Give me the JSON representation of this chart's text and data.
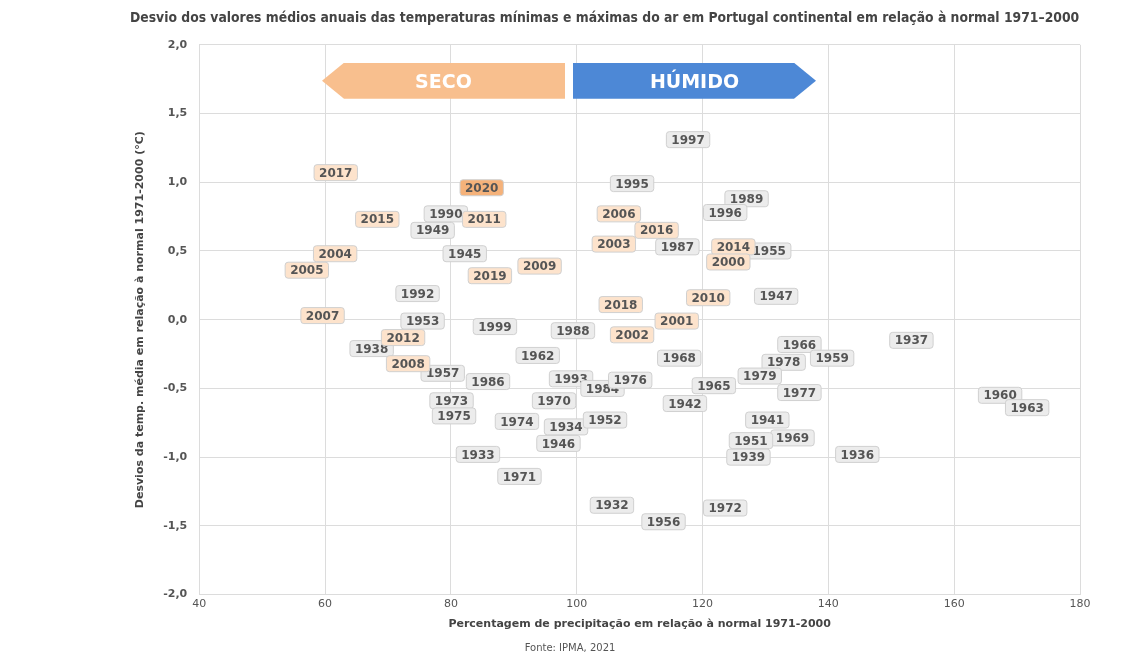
{
  "chart_data": {
    "type": "scatter",
    "title": "Desvio dos valores médios anuais das temperaturas mínimas e máximas do ar em Portugal continental em relação à normal 1971–2000",
    "xlabel": "Percentagem de precipitação em relação à normal 1971-2000",
    "ylabel": "Desvios da temp. média em relação à normal 1971-2000 (°C)",
    "xlim": [
      40,
      180
    ],
    "xticks": [
      40,
      60,
      80,
      100,
      120,
      140,
      160,
      180
    ],
    "ylim": [
      -2,
      2
    ],
    "yticks": [
      {
        "value": -2,
        "label": "-2,0"
      },
      {
        "value": -1.5,
        "label": "-1,5"
      },
      {
        "value": -1,
        "label": "-1,0"
      },
      {
        "value": -0.5,
        "label": "-0,5"
      },
      {
        "value": 0,
        "label": "0,0"
      },
      {
        "value": 0.5,
        "label": "0,5"
      },
      {
        "value": 1,
        "label": "1,0"
      },
      {
        "value": 1.5,
        "label": "1,5"
      },
      {
        "value": 2,
        "label": "2,0"
      }
    ],
    "grid": true,
    "legend": false,
    "marker": "square",
    "series": [
      {
        "color": "#ececec",
        "x": [
          79.2,
          77.1,
          82.2,
          74.7,
          75.5,
          87.0,
          67.4,
          93.8,
          99.4,
          78.7,
          85.9,
          99.1,
          80.1,
          96.4,
          80.5,
          90.5,
          98.3,
          97.1,
          84.3,
          90.9,
          104.1,
          108.5,
          104.5,
          105.6,
          113.8,
          117.7,
          108.8,
          127.0,
          123.6,
          116.0,
          130.6,
          131.7,
          116.3,
          135.4,
          132.9,
          140.6,
          121.8,
          129.1,
          135.4,
          117.2,
          130.3,
          134.3,
          127.3,
          127.7,
          123.6,
          153.2,
          167.3,
          171.6,
          144.6
        ],
        "values": [
          0.77,
          0.65,
          0.48,
          0.19,
          -0.01,
          -0.05,
          -0.21,
          -0.26,
          -0.08,
          -0.39,
          -0.45,
          -0.43,
          -0.59,
          -0.59,
          -0.7,
          -0.74,
          -0.78,
          -0.9,
          -0.98,
          -1.14,
          -0.5,
          -0.44,
          -0.73,
          -1.35,
          -1.47,
          1.31,
          0.99,
          0.88,
          0.78,
          0.53,
          0.5,
          0.17,
          -0.28,
          -0.18,
          -0.31,
          -0.28,
          -0.48,
          -0.41,
          -0.53,
          -0.61,
          -0.73,
          -0.86,
          -1.0,
          -0.88,
          -1.37,
          -0.15,
          -0.55,
          -0.64,
          -0.98
        ]
      },
      {
        "color": "#fde3cc",
        "colors": [
          "#fde3cc",
          "#f5b27a",
          "#fde3cc",
          "#fde3cc",
          "#fde3cc",
          "#fde3cc",
          "#fde3cc",
          "#fde3cc",
          "#fde3cc",
          "#fde3cc",
          "#fde3cc",
          "#fde3cc",
          "#fde3cc",
          "#fde3cc",
          "#fde3cc",
          "#fde3cc",
          "#fde3cc",
          "#fde3cc",
          "#fde3cc",
          "#fde3cc"
        ],
        "x": [
          61.7,
          84.9,
          68.3,
          85.3,
          61.6,
          57.1,
          94.1,
          86.2,
          59.6,
          72.4,
          73.2,
          106.7,
          112.7,
          105.9,
          124.9,
          124.1,
          107.0,
          120.9,
          115.9,
          108.8
        ],
        "values": [
          1.07,
          0.96,
          0.73,
          0.73,
          0.48,
          0.36,
          0.39,
          0.32,
          0.03,
          -0.13,
          -0.32,
          0.77,
          0.65,
          0.55,
          0.53,
          0.42,
          0.11,
          0.16,
          -0.01,
          -0.11
        ]
      }
    ],
    "annotations": [
      "SECO",
      "HÚMIDO",
      "Fonte: IPMA, 2021",
      {
        "text": "1990",
        "x": 79.2,
        "y": 0.77
      },
      {
        "text": "1949",
        "x": 77.1,
        "y": 0.65
      },
      {
        "text": "1945",
        "x": 82.2,
        "y": 0.48
      },
      {
        "text": "1992",
        "x": 74.7,
        "y": 0.19
      },
      {
        "text": "1953",
        "x": 75.5,
        "y": -0.01
      },
      {
        "text": "1999",
        "x": 87.0,
        "y": -0.05
      },
      {
        "text": "1938",
        "x": 67.4,
        "y": -0.21
      },
      {
        "text": "1962",
        "x": 93.8,
        "y": -0.26
      },
      {
        "text": "1988",
        "x": 99.4,
        "y": -0.08
      },
      {
        "text": "1957",
        "x": 78.7,
        "y": -0.39
      },
      {
        "text": "1986",
        "x": 85.9,
        "y": -0.45
      },
      {
        "text": "1993",
        "x": 99.1,
        "y": -0.43
      },
      {
        "text": "1973",
        "x": 80.1,
        "y": -0.59
      },
      {
        "text": "1970",
        "x": 96.4,
        "y": -0.59
      },
      {
        "text": "1975",
        "x": 80.5,
        "y": -0.7
      },
      {
        "text": "1974",
        "x": 90.5,
        "y": -0.74
      },
      {
        "text": "1934",
        "x": 98.3,
        "y": -0.78
      },
      {
        "text": "1946",
        "x": 97.1,
        "y": -0.9
      },
      {
        "text": "1933",
        "x": 84.3,
        "y": -0.98
      },
      {
        "text": "1971",
        "x": 90.9,
        "y": -1.14
      },
      {
        "text": "1984",
        "x": 104.1,
        "y": -0.5
      },
      {
        "text": "1976",
        "x": 108.5,
        "y": -0.44
      },
      {
        "text": "1952",
        "x": 104.5,
        "y": -0.73
      },
      {
        "text": "1932",
        "x": 105.6,
        "y": -1.35
      },
      {
        "text": "1956",
        "x": 113.8,
        "y": -1.47
      },
      {
        "text": "1997",
        "x": 117.7,
        "y": 1.31
      },
      {
        "text": "1995",
        "x": 108.8,
        "y": 0.99
      },
      {
        "text": "1989",
        "x": 127.0,
        "y": 0.88
      },
      {
        "text": "1996",
        "x": 123.6,
        "y": 0.78
      },
      {
        "text": "1987",
        "x": 116.0,
        "y": 0.53
      },
      {
        "text": "1955",
        "x": 130.6,
        "y": 0.5
      },
      {
        "text": "1947",
        "x": 131.7,
        "y": 0.17
      },
      {
        "text": "1968",
        "x": 116.3,
        "y": -0.28
      },
      {
        "text": "1966",
        "x": 135.4,
        "y": -0.18
      },
      {
        "text": "1978",
        "x": 132.9,
        "y": -0.31
      },
      {
        "text": "1959",
        "x": 140.6,
        "y": -0.28
      },
      {
        "text": "1965",
        "x": 121.8,
        "y": -0.48
      },
      {
        "text": "1979",
        "x": 129.1,
        "y": -0.41
      },
      {
        "text": "1977",
        "x": 135.4,
        "y": -0.53
      },
      {
        "text": "1942",
        "x": 117.2,
        "y": -0.61
      },
      {
        "text": "1941",
        "x": 130.3,
        "y": -0.73
      },
      {
        "text": "1969",
        "x": 134.3,
        "y": -0.86
      },
      {
        "text": "1939",
        "x": 127.3,
        "y": -1.0
      },
      {
        "text": "1951",
        "x": 127.7,
        "y": -0.88
      },
      {
        "text": "1972",
        "x": 123.6,
        "y": -1.37
      },
      {
        "text": "1937",
        "x": 153.2,
        "y": -0.15
      },
      {
        "text": "1960",
        "x": 167.3,
        "y": -0.55
      },
      {
        "text": "1963",
        "x": 171.6,
        "y": -0.64
      },
      {
        "text": "1936",
        "x": 144.6,
        "y": -0.98
      },
      {
        "text": "2017",
        "x": 61.7,
        "y": 1.07
      },
      {
        "text": "2020",
        "x": 84.9,
        "y": 0.96
      },
      {
        "text": "2015",
        "x": 68.3,
        "y": 0.73
      },
      {
        "text": "2011",
        "x": 85.3,
        "y": 0.73
      },
      {
        "text": "2004",
        "x": 61.6,
        "y": 0.48
      },
      {
        "text": "2005",
        "x": 57.1,
        "y": 0.36
      },
      {
        "text": "2009",
        "x": 94.1,
        "y": 0.39
      },
      {
        "text": "2019",
        "x": 86.2,
        "y": 0.32
      },
      {
        "text": "2007",
        "x": 59.6,
        "y": 0.03
      },
      {
        "text": "2012",
        "x": 72.4,
        "y": -0.13
      },
      {
        "text": "2008",
        "x": 73.2,
        "y": -0.32
      },
      {
        "text": "2006",
        "x": 106.7,
        "y": 0.77
      },
      {
        "text": "2016",
        "x": 112.7,
        "y": 0.65
      },
      {
        "text": "2003",
        "x": 105.9,
        "y": 0.55
      },
      {
        "text": "2014",
        "x": 124.9,
        "y": 0.53
      },
      {
        "text": "2000",
        "x": 124.1,
        "y": 0.42
      },
      {
        "text": "2018",
        "x": 107.0,
        "y": 0.11
      },
      {
        "text": "2010",
        "x": 120.9,
        "y": 0.16
      },
      {
        "text": "2001",
        "x": 115.9,
        "y": -0.01
      },
      {
        "text": "2002",
        "x": 108.8,
        "y": -0.11
      }
    ]
  }
}
